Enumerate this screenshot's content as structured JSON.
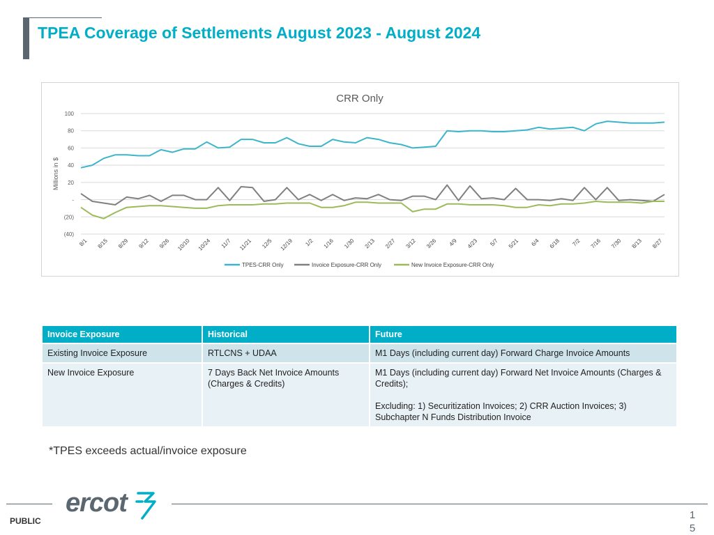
{
  "page": {
    "title": "TPEA Coverage of Settlements August 2023 - August 2024",
    "note": "*TPES exceeds actual/invoice exposure",
    "footer_label": "PUBLIC",
    "page_number": "15",
    "logo_text": "ercot"
  },
  "colors": {
    "accent": "#00aec7",
    "dark": "#5b6770",
    "series_tpes": "#3ab5c9",
    "series_invoice": "#808080",
    "series_new": "#9bbb59"
  },
  "chart_data": {
    "type": "line",
    "title": "CRR Only",
    "ylabel": "Millions in $",
    "ylim": [
      -40,
      100
    ],
    "yticks": [
      100,
      80,
      60,
      40,
      20,
      0,
      -20,
      -40
    ],
    "ytick_labels": [
      "100",
      "80",
      "60",
      "40",
      "20",
      "-",
      "(20)",
      "(40)"
    ],
    "xtick_labels": [
      "8/1",
      "8/15",
      "8/29",
      "9/12",
      "9/26",
      "10/10",
      "10/24",
      "11/7",
      "11/21",
      "12/5",
      "12/19",
      "1/2",
      "1/16",
      "1/30",
      "2/13",
      "2/27",
      "3/12",
      "3/26",
      "4/9",
      "4/23",
      "5/7",
      "5/21",
      "6/4",
      "6/18",
      "7/2",
      "7/16",
      "7/30",
      "8/13",
      "8/27"
    ],
    "legend_position": "bottom",
    "grid": true,
    "series": [
      {
        "name": "TPES-CRR Only",
        "color": "#3ab5c9",
        "values": [
          37,
          40,
          48,
          52,
          52,
          51,
          51,
          58,
          55,
          59,
          59,
          67,
          60,
          61,
          70,
          70,
          66,
          66,
          72,
          65,
          62,
          62,
          70,
          67,
          66,
          72,
          70,
          66,
          64,
          60,
          61,
          62,
          80,
          79,
          80,
          80,
          79,
          79,
          80,
          81,
          84,
          82,
          83,
          84,
          80,
          88,
          91,
          90,
          89,
          89,
          89,
          90
        ]
      },
      {
        "name": "Invoice Exposure-CRR Only",
        "color": "#808080",
        "values": [
          7,
          -2,
          -4,
          -6,
          3,
          1,
          5,
          -2,
          5,
          5,
          0,
          0,
          14,
          -1,
          15,
          14,
          -2,
          0,
          14,
          0,
          6,
          -1,
          6,
          -1,
          2,
          1,
          6,
          0,
          -1,
          4,
          4,
          0,
          17,
          -1,
          16,
          1,
          2,
          0,
          13,
          0,
          0,
          -1,
          1,
          -1,
          14,
          0,
          14,
          -1,
          0,
          -1,
          -2,
          6
        ]
      },
      {
        "name": "New Invoice Exposure-CRR Only",
        "color": "#9bbb59",
        "values": [
          -9,
          -18,
          -22,
          -15,
          -9,
          -8,
          -7,
          -7,
          -8,
          -9,
          -10,
          -10,
          -7,
          -6,
          -6,
          -6,
          -5,
          -5,
          -4,
          -4,
          -4,
          -9,
          -9,
          -7,
          -3,
          -3,
          -4,
          -4,
          -4,
          -14,
          -11,
          -11,
          -5,
          -5,
          -6,
          -6,
          -6,
          -7,
          -9,
          -9,
          -6,
          -7,
          -5,
          -5,
          -4,
          -2,
          -3,
          -3,
          -3,
          -4,
          -2,
          -2
        ]
      }
    ]
  },
  "table": {
    "headers": [
      "Invoice Exposure",
      "Historical",
      "Future"
    ],
    "rows": [
      {
        "c1": "Existing Invoice Exposure",
        "c2": "RTLCNS + UDAA",
        "c3": "M1 Days (including current day) Forward Charge Invoice Amounts"
      },
      {
        "c1": "New Invoice Exposure",
        "c2": "7 Days Back Net Invoice Amounts (Charges & Credits)",
        "c3": "M1 Days (including current day) Forward  Net Invoice Amounts (Charges & Credits);",
        "c3b": "Excluding: 1) Securitization Invoices; 2) CRR Auction Invoices; 3) Subchapter N Funds Distribution Invoice"
      }
    ]
  }
}
